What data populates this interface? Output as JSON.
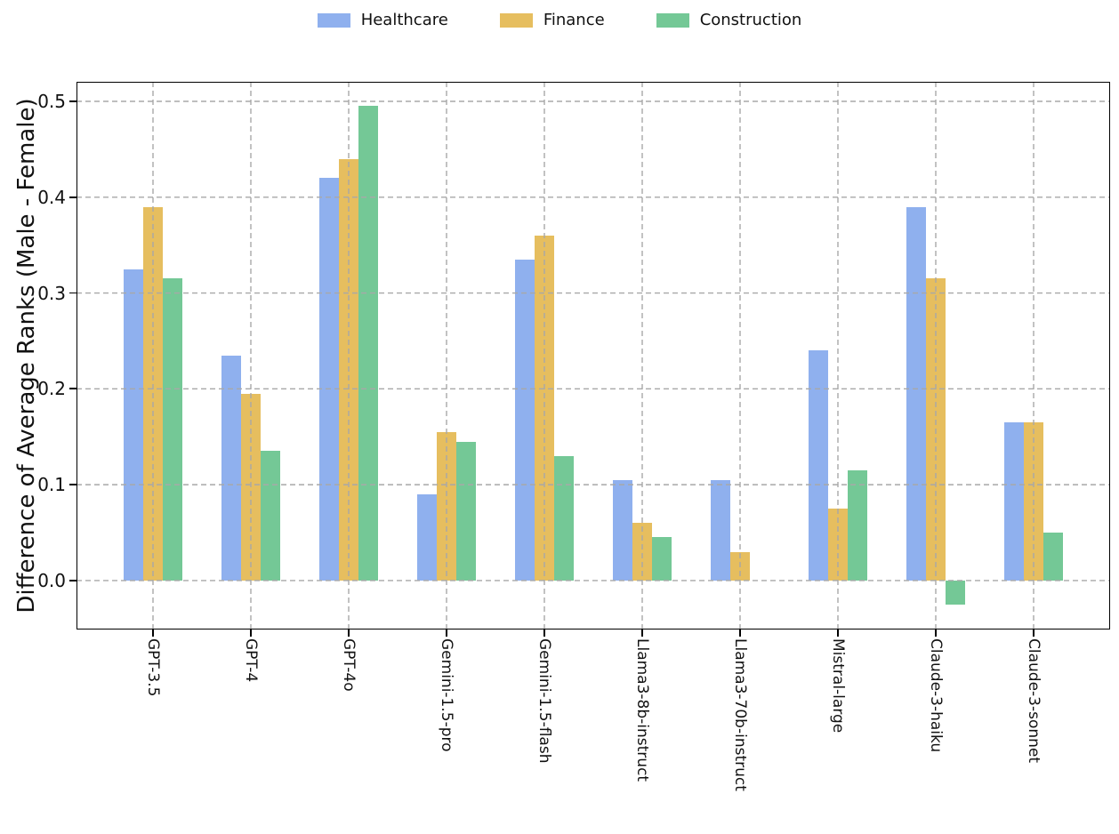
{
  "chart_data": {
    "type": "bar",
    "title": "",
    "xlabel": "",
    "ylabel": "Difference of Average Ranks (Male - Female)",
    "categories": [
      "GPT-3.5",
      "GPT-4",
      "GPT-4o",
      "Gemini-1.5-pro",
      "Gemini-1.5-flash",
      "Llama3-8b-instruct",
      "Llama3-70b-instruct",
      "Mistral-large",
      "Claude-3-haiku",
      "Claude-3-sonnet"
    ],
    "series": [
      {
        "name": "Healthcare",
        "color": "#8FB0EE",
        "values": [
          0.325,
          0.235,
          0.42,
          0.09,
          0.335,
          0.105,
          0.105,
          0.24,
          0.39,
          0.165
        ]
      },
      {
        "name": "Finance",
        "color": "#E6BE5F",
        "values": [
          0.39,
          0.195,
          0.44,
          0.155,
          0.36,
          0.06,
          0.03,
          0.075,
          0.315,
          0.165
        ]
      },
      {
        "name": "Construction",
        "color": "#74C896",
        "values": [
          0.315,
          0.135,
          0.495,
          0.145,
          0.13,
          0.045,
          0.0,
          0.115,
          -0.025,
          0.05
        ]
      }
    ],
    "yticks": [
      0.0,
      0.1,
      0.2,
      0.3,
      0.4,
      0.5
    ],
    "ytick_labels": [
      "0.0",
      "0.1",
      "0.2",
      "0.3",
      "0.4",
      "0.5"
    ],
    "ylim": [
      -0.0511,
      0.5204
    ],
    "grid": true,
    "grid_color": "#a8a8a8",
    "axis_color": "#000000",
    "legend_position": "top center"
  }
}
